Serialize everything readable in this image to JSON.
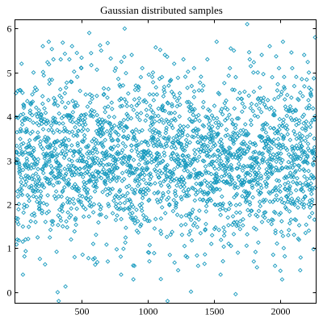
{
  "chart_data": {
    "type": "scatter",
    "title": "Gaussian distributed samples",
    "xlabel": "",
    "ylabel": "",
    "xlim": [
      0,
      2270
    ],
    "ylim": [
      -0.25,
      6.2
    ],
    "x_ticks": [
      500,
      1000,
      1500,
      2000
    ],
    "y_ticks": [
      0,
      1,
      2,
      3,
      4,
      5,
      6
    ],
    "grid": false,
    "legend": "none",
    "marker": "open-diamond",
    "color": "#1a9bbf",
    "sample_count": 2270,
    "mean": 3.0,
    "std_dev": 0.9,
    "series": [
      {
        "name": "",
        "points": [
          [
            12,
            3.2
          ],
          [
            35,
            4.6
          ],
          [
            50,
            5.2
          ],
          [
            60,
            0.4
          ],
          [
            80,
            1.2
          ],
          [
            105,
            2.6
          ],
          [
            140,
            5.0
          ],
          [
            160,
            4.2
          ],
          [
            180,
            3.8
          ],
          [
            210,
            5.6
          ],
          [
            240,
            1.8
          ],
          [
            255,
            5.7
          ],
          [
            290,
            5.3
          ],
          [
            300,
            4.3
          ],
          [
            322,
            0.0
          ],
          [
            330,
            -0.2
          ],
          [
            345,
            5.3
          ],
          [
            360,
            1.5
          ],
          [
            380,
            3.5
          ],
          [
            410,
            5.3
          ],
          [
            430,
            5.6
          ],
          [
            450,
            0.8
          ],
          [
            470,
            4.9
          ],
          [
            500,
            5.1
          ],
          [
            520,
            2.4
          ],
          [
            560,
            5.9
          ],
          [
            590,
            1.1
          ],
          [
            620,
            3.9
          ],
          [
            650,
            5.5
          ],
          [
            680,
            4.1
          ],
          [
            700,
            0.7
          ],
          [
            730,
            2.8
          ],
          [
            760,
            5.1
          ],
          [
            800,
            0.4
          ],
          [
            827,
            6.0
          ],
          [
            850,
            3.5
          ],
          [
            880,
            5.4
          ],
          [
            900,
            0.6
          ],
          [
            930,
            4.6
          ],
          [
            960,
            5.1
          ],
          [
            990,
            1.7
          ],
          [
            1010,
            0.9
          ],
          [
            1040,
            5.0
          ],
          [
            1070,
            4.5
          ],
          [
            1100,
            0.3
          ],
          [
            1130,
            5.4
          ],
          [
            1150,
            -0.2
          ],
          [
            1180,
            3.3
          ],
          [
            1200,
            5.2
          ],
          [
            1230,
            0.5
          ],
          [
            1270,
            5.3
          ],
          [
            1310,
            2.2
          ],
          [
            1350,
            5.1
          ],
          [
            1380,
            0.6
          ],
          [
            1420,
            4.7
          ],
          [
            1450,
            5.3
          ],
          [
            1480,
            1.1
          ],
          [
            1520,
            5.7
          ],
          [
            1550,
            0.4
          ],
          [
            1580,
            3.2
          ],
          [
            1620,
            5.1
          ],
          [
            1650,
            5.5
          ],
          [
            1680,
            0.9
          ],
          [
            1710,
            4.4
          ],
          [
            1750,
            6.1
          ],
          [
            1770,
            5.3
          ],
          [
            1800,
            0.7
          ],
          [
            1830,
            5.0
          ],
          [
            1860,
            5.4
          ],
          [
            1890,
            2.1
          ],
          [
            1920,
            5.6
          ],
          [
            1960,
            0.6
          ],
          [
            1990,
            5.1
          ],
          [
            2020,
            5.7
          ],
          [
            2060,
            1.3
          ],
          [
            2090,
            5.1
          ],
          [
            2120,
            4.9
          ],
          [
            2150,
            0.5
          ],
          [
            2180,
            5.4
          ],
          [
            2215,
            5.0
          ],
          [
            2240,
            1.8
          ],
          [
            2262,
            5.8
          ]
        ]
      }
    ]
  }
}
